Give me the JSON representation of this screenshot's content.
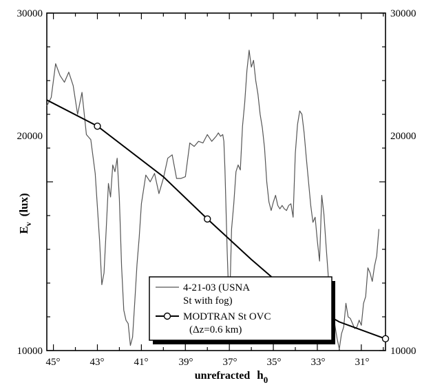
{
  "chart_data": {
    "type": "line",
    "title": "",
    "xlabel": "unrefracted",
    "xlabel_symbol": "h",
    "xlabel_subscript": "0",
    "ylabel_symbol": "E",
    "ylabel_subscript": "v",
    "ylabel_unit": "(lux)",
    "xlim": [
      45.3,
      29.9
    ],
    "ylim": [
      10000,
      30000
    ],
    "x_reversed": true,
    "x_tick_labels": [
      "45°",
      "43°",
      "41°",
      "39°",
      "37°",
      "35°",
      "33°",
      "31°"
    ],
    "x_tick_values": [
      45,
      43,
      41,
      39,
      37,
      35,
      33,
      31
    ],
    "y_tick_labels": [
      "10000",
      "20000",
      "30000"
    ],
    "y_tick_values": [
      10000,
      20000,
      30000
    ],
    "y_right_tick_labels": [
      "10000",
      "20000",
      "30000"
    ],
    "grid": false,
    "legend_placement": "bottom-right",
    "series": [
      {
        "name": "4-21-03 (USNA",
        "name_line2": "St with fog)",
        "color": "#555555",
        "x": [
          45.3,
          45.1,
          44.9,
          44.7,
          44.5,
          44.3,
          44.1,
          43.9,
          43.7,
          43.5,
          43.3,
          43.1,
          42.9,
          42.8,
          42.7,
          42.6,
          42.5,
          42.4,
          42.3,
          42.2,
          42.1,
          42.0,
          41.9,
          41.8,
          41.7,
          41.6,
          41.5,
          41.4,
          41.3,
          41.2,
          41.1,
          41.0,
          40.8,
          40.6,
          40.4,
          40.2,
          40.0,
          39.8,
          39.6,
          39.4,
          39.2,
          39.0,
          38.8,
          38.6,
          38.4,
          38.2,
          38.0,
          37.8,
          37.6,
          37.5,
          37.4,
          37.3,
          37.25,
          37.2,
          37.1,
          37.0,
          36.9,
          36.8,
          36.7,
          36.6,
          36.5,
          36.4,
          36.3,
          36.2,
          36.1,
          36.0,
          35.9,
          35.8,
          35.7,
          35.6,
          35.5,
          35.4,
          35.3,
          35.2,
          35.1,
          35.0,
          34.9,
          34.8,
          34.7,
          34.6,
          34.5,
          34.4,
          34.3,
          34.2,
          34.1,
          34.0,
          33.9,
          33.8,
          33.7,
          33.6,
          33.5,
          33.4,
          33.3,
          33.2,
          33.1,
          33.0,
          32.9,
          32.8,
          32.7,
          32.6,
          32.5,
          32.4,
          32.3,
          32.2,
          32.1,
          32.0,
          31.9,
          31.8,
          31.7,
          31.6,
          31.5,
          31.4,
          31.3,
          31.2,
          31.1,
          31.0,
          30.9,
          30.8,
          30.7,
          30.6,
          30.5,
          30.4,
          30.3,
          30.2
        ],
        "y": [
          24500,
          25000,
          27000,
          26300,
          25900,
          26500,
          25700,
          24000,
          25300,
          22800,
          22500,
          20500,
          16500,
          13900,
          14600,
          17200,
          19900,
          19100,
          21000,
          20600,
          21400,
          19000,
          15000,
          12400,
          11800,
          11600,
          10300,
          10800,
          12900,
          15100,
          16700,
          18700,
          20400,
          20000,
          20500,
          19300,
          20200,
          21400,
          21600,
          20200,
          20200,
          20300,
          22300,
          22100,
          22400,
          22300,
          22800,
          22400,
          22700,
          22900,
          22700,
          22800,
          22400,
          20700,
          15900,
          12100,
          17200,
          18700,
          20600,
          21000,
          20700,
          23300,
          24700,
          26600,
          27800,
          26800,
          27200,
          26000,
          25200,
          24000,
          23200,
          22000,
          20000,
          18800,
          18300,
          18800,
          19200,
          18600,
          18400,
          18600,
          18400,
          18300,
          18600,
          18700,
          17900,
          21700,
          23400,
          24200,
          24000,
          22900,
          21400,
          20000,
          18600,
          17600,
          17900,
          16500,
          15300,
          19200,
          18100,
          16200,
          14400,
          13200,
          12100,
          11500,
          10700,
          10100,
          11000,
          11400,
          12800,
          12000,
          11900,
          11600,
          11300,
          11400,
          11800,
          11500,
          12800,
          13200,
          14900,
          14600,
          14100,
          15000,
          15600,
          17200
        ]
      },
      {
        "name": "MODTRAN St OVC",
        "name_line2": "(Δz=0.6 km)",
        "color": "#000000",
        "x": [
          45.3,
          43.0,
          40.0,
          38.0,
          36.0,
          34.0,
          32.0,
          29.9
        ],
        "y": [
          24850,
          23300,
          20300,
          17800,
          15400,
          13150,
          11700,
          10700
        ],
        "markers_at": [
          1,
          3
        ]
      }
    ]
  }
}
